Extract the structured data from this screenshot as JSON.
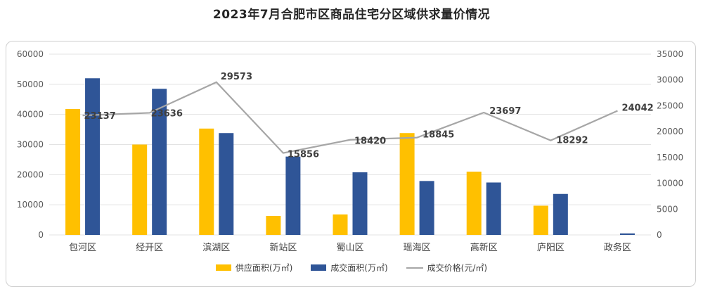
{
  "title": "2023年7月合肥市区商品住宅分区域供求量价情况",
  "chart_data": {
    "type": "bar+line",
    "categories": [
      "包河区",
      "经开区",
      "滨湖区",
      "新站区",
      "蜀山区",
      "瑶海区",
      "高新区",
      "庐阳区",
      "政务区"
    ],
    "series": [
      {
        "name": "供应面积(万㎡)",
        "kind": "bar",
        "axis": "left",
        "color": "#FFC000",
        "values": [
          41800,
          30000,
          35300,
          6300,
          6800,
          33800,
          21000,
          9700,
          0
        ]
      },
      {
        "name": "成交面积(万㎡)",
        "kind": "bar",
        "axis": "left",
        "color": "#2F5597",
        "values": [
          52000,
          48500,
          33800,
          26000,
          20800,
          17900,
          17400,
          13600,
          500
        ]
      },
      {
        "name": "成交价格(元/㎡)",
        "kind": "line",
        "axis": "right",
        "color": "#A6A6A6",
        "values": [
          23137,
          23636,
          29573,
          15856,
          18420,
          18845,
          23697,
          18292,
          24042
        ]
      }
    ],
    "left_axis": {
      "min": 0,
      "max": 60000,
      "ticks": [
        0,
        10000,
        20000,
        30000,
        40000,
        50000,
        60000
      ]
    },
    "right_axis": {
      "min": 0,
      "max": 35000,
      "ticks": [
        0,
        5000,
        10000,
        15000,
        20000,
        25000,
        30000,
        35000
      ]
    },
    "grid": true,
    "legend_position": "bottom",
    "data_labels": [
      "23137",
      "23636",
      "29573",
      "15856",
      "18420",
      "18845",
      "23697",
      "18292",
      "24042"
    ]
  }
}
